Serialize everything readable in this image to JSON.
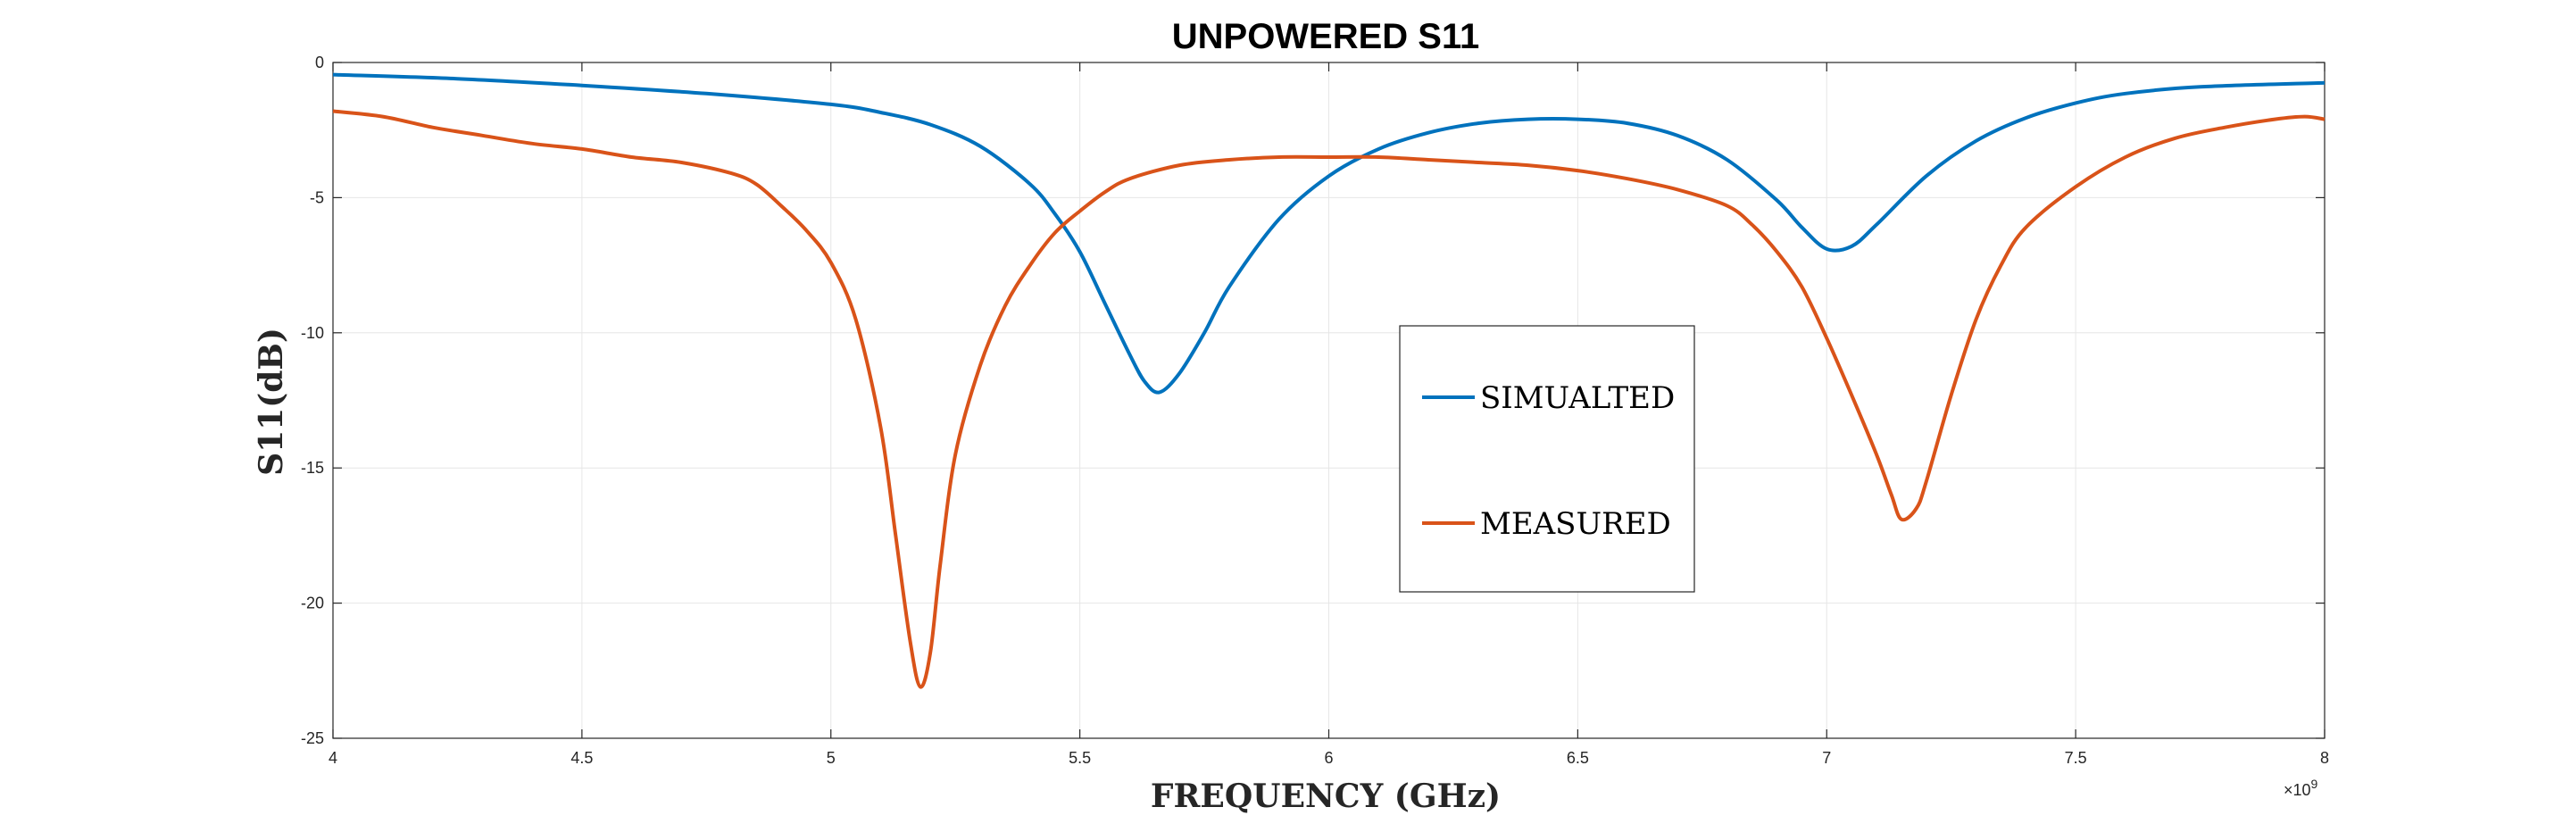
{
  "chart_data": {
    "type": "line",
    "title": "UNPOWERED S11",
    "xlabel": "FREQUENCY (GHz)",
    "ylabel": "S11(dB)",
    "x_exponent_label": "×10",
    "x_exponent_power": "9",
    "xlim": [
      4,
      8
    ],
    "ylim": [
      -25,
      0
    ],
    "x_ticks": [
      4,
      4.5,
      5,
      5.5,
      6,
      6.5,
      7,
      7.5,
      8
    ],
    "x_tick_labels": [
      "4",
      "4.5",
      "5",
      "5.5",
      "6",
      "6.5",
      "7",
      "7.5",
      "8"
    ],
    "y_ticks": [
      0,
      -5,
      -10,
      -15,
      -20,
      -25
    ],
    "y_tick_labels": [
      "0",
      "-5",
      "-10",
      "-15",
      "-20",
      "-25"
    ],
    "grid": true,
    "legend_position": "center-right",
    "series": [
      {
        "name": "SIMUALTED",
        "color": "#0072BD",
        "x": [
          4.0,
          4.25,
          4.5,
          4.75,
          5.0,
          5.1,
          5.2,
          5.3,
          5.4,
          5.45,
          5.5,
          5.55,
          5.6,
          5.63,
          5.66,
          5.7,
          5.75,
          5.8,
          5.9,
          6.0,
          6.1,
          6.2,
          6.3,
          6.4,
          6.5,
          6.6,
          6.7,
          6.8,
          6.9,
          6.95,
          7.0,
          7.05,
          7.1,
          7.2,
          7.3,
          7.4,
          7.5,
          7.6,
          7.75,
          8.0
        ],
        "y": [
          -0.45,
          -0.6,
          -0.85,
          -1.15,
          -1.55,
          -1.85,
          -2.3,
          -3.1,
          -4.5,
          -5.6,
          -7.0,
          -8.9,
          -10.8,
          -11.8,
          -12.2,
          -11.5,
          -10.0,
          -8.3,
          -5.8,
          -4.2,
          -3.2,
          -2.6,
          -2.25,
          -2.1,
          -2.1,
          -2.25,
          -2.7,
          -3.6,
          -5.1,
          -6.1,
          -6.9,
          -6.8,
          -6.0,
          -4.2,
          -2.9,
          -2.05,
          -1.5,
          -1.15,
          -0.9,
          -0.75
        ]
      },
      {
        "name": "MEASURED",
        "color": "#D95319",
        "x": [
          4.0,
          4.1,
          4.2,
          4.3,
          4.4,
          4.5,
          4.6,
          4.7,
          4.8,
          4.85,
          4.9,
          4.95,
          5.0,
          5.05,
          5.1,
          5.13,
          5.16,
          5.18,
          5.2,
          5.22,
          5.25,
          5.3,
          5.35,
          5.4,
          5.45,
          5.5,
          5.55,
          5.6,
          5.7,
          5.8,
          5.9,
          6.0,
          6.1,
          6.2,
          6.3,
          6.4,
          6.5,
          6.6,
          6.7,
          6.8,
          6.85,
          6.9,
          6.95,
          7.0,
          7.05,
          7.1,
          7.13,
          7.15,
          7.18,
          7.2,
          7.25,
          7.3,
          7.35,
          7.4,
          7.5,
          7.6,
          7.7,
          7.8,
          7.9,
          7.96,
          8.0
        ],
        "y": [
          -1.8,
          -2.0,
          -2.4,
          -2.7,
          -3.0,
          -3.2,
          -3.5,
          -3.7,
          -4.1,
          -4.5,
          -5.3,
          -6.2,
          -7.4,
          -9.5,
          -13.5,
          -17.5,
          -21.5,
          -23.1,
          -21.8,
          -18.5,
          -14.5,
          -11.2,
          -9.0,
          -7.5,
          -6.3,
          -5.5,
          -4.8,
          -4.3,
          -3.8,
          -3.6,
          -3.5,
          -3.5,
          -3.5,
          -3.6,
          -3.7,
          -3.8,
          -4.0,
          -4.3,
          -4.7,
          -5.3,
          -6.0,
          -7.0,
          -8.3,
          -10.2,
          -12.3,
          -14.5,
          -16.0,
          -16.9,
          -16.5,
          -15.5,
          -12.3,
          -9.5,
          -7.5,
          -6.1,
          -4.6,
          -3.5,
          -2.8,
          -2.4,
          -2.1,
          -2.0,
          -2.1
        ]
      }
    ]
  }
}
